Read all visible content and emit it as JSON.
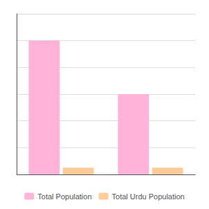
{
  "chart_data": {
    "type": "bar",
    "categories": [
      null,
      null
    ],
    "series": [
      {
        "name": "Total Population",
        "color": "#FFB3D9",
        "values": [
          10000000,
          6000000
        ]
      },
      {
        "name": "Total Urdu Population",
        "color": "#FFCC99",
        "values": [
          500000,
          500000
        ]
      }
    ],
    "ylim": [
      0,
      12000000
    ],
    "yticks": [
      0,
      2000000,
      4000000,
      6000000,
      8000000,
      10000000,
      12000000
    ],
    "grid": true,
    "legend": "bottom",
    "tick_labels": false
  }
}
